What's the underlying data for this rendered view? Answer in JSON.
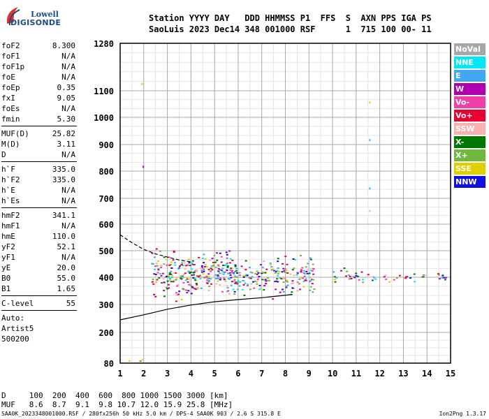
{
  "logo": {
    "line1": "Lowell",
    "line2": "DIGISONDE"
  },
  "header": {
    "line1": "Station YYYY DAY   DDD HHMMSS P1  FFS  S  AXN PPS IGA PS",
    "line2": "SaoLuis 2023 Dec14 348 001000 RSF      1  715 100 00- 11"
  },
  "params": [
    {
      "label": "foF2",
      "value": "8.300"
    },
    {
      "label": "foF1",
      "value": "N/A"
    },
    {
      "label": "foF1p",
      "value": "N/A"
    },
    {
      "label": "foE",
      "value": "N/A"
    },
    {
      "label": "foEp",
      "value": "0.35"
    },
    {
      "label": "fxI",
      "value": "9.05"
    },
    {
      "label": "foEs",
      "value": "N/A"
    },
    {
      "label": "fmin",
      "value": "5.30"
    },
    {
      "divider": true
    },
    {
      "label": "MUF(D)",
      "value": "25.82"
    },
    {
      "label": "M(D)",
      "value": "3.11"
    },
    {
      "label": "D",
      "value": "N/A"
    },
    {
      "divider": true
    },
    {
      "label": "h`F",
      "value": "335.0"
    },
    {
      "label": "h`F2",
      "value": "335.0"
    },
    {
      "label": "h`E",
      "value": "N/A"
    },
    {
      "label": "h`Es",
      "value": "N/A"
    },
    {
      "divider": true
    },
    {
      "label": "hmF2",
      "value": "341.1"
    },
    {
      "label": "hmF1",
      "value": "N/A"
    },
    {
      "label": "hmE",
      "value": "110.0"
    },
    {
      "label": "yF2",
      "value": "52.1"
    },
    {
      "label": "yF1",
      "value": "N/A"
    },
    {
      "label": "yE",
      "value": "20.0"
    },
    {
      "label": "B0",
      "value": "55.0"
    },
    {
      "label": "B1",
      "value": "1.65"
    },
    {
      "divider": true
    },
    {
      "label": "C-level",
      "value": "55"
    },
    {
      "divider": true
    },
    {
      "plain": "Auto:"
    },
    {
      "plain": "Artist5"
    },
    {
      "plain": "500200"
    }
  ],
  "legend": [
    {
      "label": "NoVal",
      "color": "#a8a8a8"
    },
    {
      "label": "NNE",
      "color": "#00e8f8"
    },
    {
      "label": "E",
      "color": "#40a8f0"
    },
    {
      "label": "W",
      "color": "#b000b0"
    },
    {
      "label": "Vo-",
      "color": "#f040a8"
    },
    {
      "label": "Vo+",
      "color": "#e80030"
    },
    {
      "label": "SSW",
      "color": "#f8b0b0"
    },
    {
      "label": "X-",
      "color": "#007800"
    },
    {
      "label": "X+",
      "color": "#70b840"
    },
    {
      "label": "SSE",
      "color": "#e0d000"
    },
    {
      "label": "NNW",
      "color": "#1010e0"
    }
  ],
  "footer": {
    "line1": "D     100  200  400  600  800 1000 1500 3000 [km]",
    "line2": "MUF   8.6  8.7  9.1  9.8 10.7 12.0 15.9 25.8 [MHz]",
    "line3": "SAA0K_2023348001000.RSF / 280fx256h 50 kHz 5.0 km / DPS-4 SAA0K 903 / 2.6 S 315.8 E",
    "version": "Ion2Png 1.3.17"
  },
  "chart_data": {
    "type": "scatter",
    "x_ticks": [
      1,
      2,
      3,
      4,
      5,
      6,
      7,
      8,
      9,
      10,
      11,
      12,
      13,
      14,
      15
    ],
    "y_tick_labels": [
      80,
      200,
      300,
      400,
      500,
      600,
      700,
      800,
      900,
      1000,
      1100,
      1280
    ],
    "xlim": [
      1,
      15
    ],
    "ylim": [
      80,
      1280
    ],
    "xlabel": "",
    "ylabel": "",
    "grid": true,
    "legend_placement": "right",
    "curves": [
      {
        "style": "dashed",
        "points": [
          [
            1.0,
            560
          ],
          [
            1.5,
            530
          ],
          [
            2.0,
            505
          ],
          [
            2.5,
            488
          ],
          [
            3.0,
            476
          ],
          [
            3.5,
            465
          ],
          [
            4.0,
            458
          ]
        ]
      },
      {
        "style": "solid",
        "points": [
          [
            1.0,
            245
          ],
          [
            2.0,
            263
          ],
          [
            3.0,
            283
          ],
          [
            4.0,
            298
          ],
          [
            5.0,
            310
          ],
          [
            6.0,
            318
          ],
          [
            7.0,
            325
          ],
          [
            7.8,
            332
          ],
          [
            8.3,
            337
          ]
        ]
      }
    ],
    "echo_regions": [
      {
        "x": [
          1.1,
          2.2
        ],
        "y": [
          80,
          110
        ]
      },
      {
        "x": [
          2.3,
          5.9
        ],
        "y": [
          300,
          530
        ]
      },
      {
        "x": [
          5.9,
          9.2
        ],
        "y": [
          310,
          500
        ]
      },
      {
        "x": [
          9.9,
          11.6
        ],
        "y": [
          375,
          450
        ]
      },
      {
        "x": [
          11.6,
          14.9
        ],
        "y": [
          378,
          430
        ]
      }
    ]
  }
}
